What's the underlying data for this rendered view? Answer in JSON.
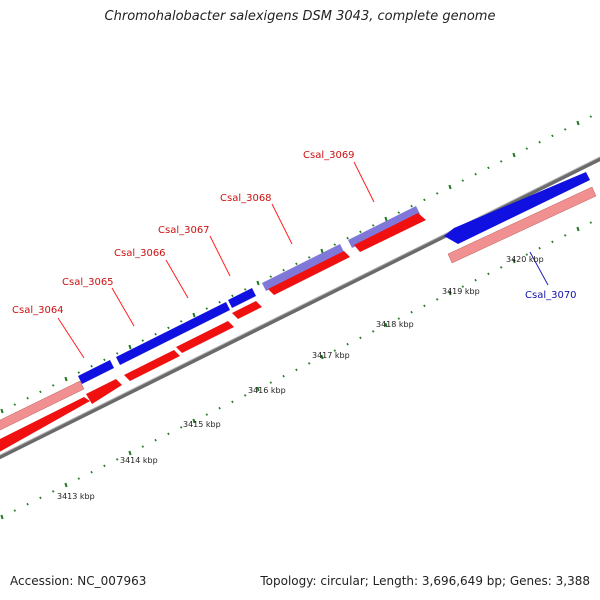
{
  "title": "Chromohalobacter salexigens DSM 3043, complete genome",
  "footer": {
    "accession": "Accession: NC_007963",
    "summary": "Topology: circular; Length: 3,696,649 bp; Genes: 3,388"
  },
  "colors": {
    "forward_cds": "#1010e0",
    "forward_cds_light": "#8080d0",
    "reverse_cds": "#f01010",
    "reverse_cds_light": "#f09090",
    "backbone": "#808080",
    "tick": "#1a7a1a"
  },
  "ticks": [
    "3413 kbp",
    "3414 kbp",
    "3415 kbp",
    "3416 kbp",
    "3417 kbp",
    "3418 kbp",
    "3419 kbp",
    "3420 kbp"
  ],
  "genes": [
    {
      "name": "Csal_3064",
      "color": "red"
    },
    {
      "name": "Csal_3065",
      "color": "red"
    },
    {
      "name": "Csal_3066",
      "color": "red"
    },
    {
      "name": "Csal_3067",
      "color": "red"
    },
    {
      "name": "Csal_3068",
      "color": "red"
    },
    {
      "name": "Csal_3069",
      "color": "red"
    },
    {
      "name": "Csal_3070",
      "color": "blue"
    }
  ]
}
